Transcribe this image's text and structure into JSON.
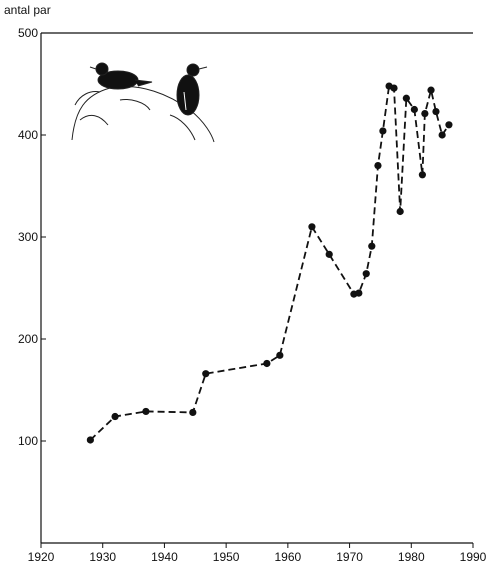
{
  "chart_data": {
    "type": "line",
    "y_label": "antal par",
    "x": [
      1928,
      1932,
      1937,
      1944.6,
      1946.7,
      1956.6,
      1958.7,
      1963.9,
      1966.7,
      1970.7,
      1971.5,
      1972.7,
      1973.6,
      1974.6,
      1975.4,
      1976.4,
      1977.2,
      1978.2,
      1979.2,
      1980.5,
      1981.8,
      1982.2,
      1983.2,
      1984,
      1985,
      1986.1
    ],
    "series": [
      {
        "color": "#111111",
        "values": [
          101,
          124,
          129,
          128,
          166,
          176,
          184,
          310,
          283,
          244,
          245,
          264,
          291,
          370,
          404,
          448,
          446,
          325,
          436,
          425,
          361,
          421,
          444,
          423,
          400,
          410
        ]
      }
    ],
    "xlim": [
      1920,
      1990
    ],
    "xticks": [
      1920,
      1930,
      1940,
      1950,
      1960,
      1970,
      1980,
      1990
    ],
    "ylim": [
      0,
      500
    ],
    "yticks": [
      100,
      200,
      300,
      400,
      500
    ]
  }
}
